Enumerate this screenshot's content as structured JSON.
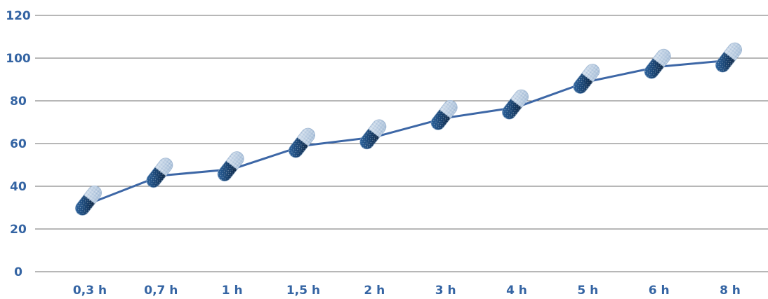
{
  "chart_data": {
    "type": "line",
    "title": "",
    "xlabel": "",
    "ylabel": "",
    "categories": [
      "0,3 h",
      "0,7 h",
      "1 h",
      "1,5 h",
      "2 h",
      "3 h",
      "4 h",
      "5 h",
      "6 h",
      "8 h"
    ],
    "series": [
      {
        "values": [
          32,
          45,
          48,
          59,
          63,
          72,
          77,
          89,
          96,
          99
        ]
      }
    ],
    "ylim": [
      0,
      120
    ],
    "yticks": [
      "0",
      "20",
      "40",
      "60",
      "80",
      "100",
      "120"
    ],
    "grid": true,
    "legend": "none",
    "marker": "capsule-icon",
    "colors": {
      "line": "#3d67a6",
      "labels": "#3464a3",
      "grid": "#6f6f6f",
      "capsule_dark": "#14375f",
      "capsule_light": "#b9cde3"
    }
  }
}
